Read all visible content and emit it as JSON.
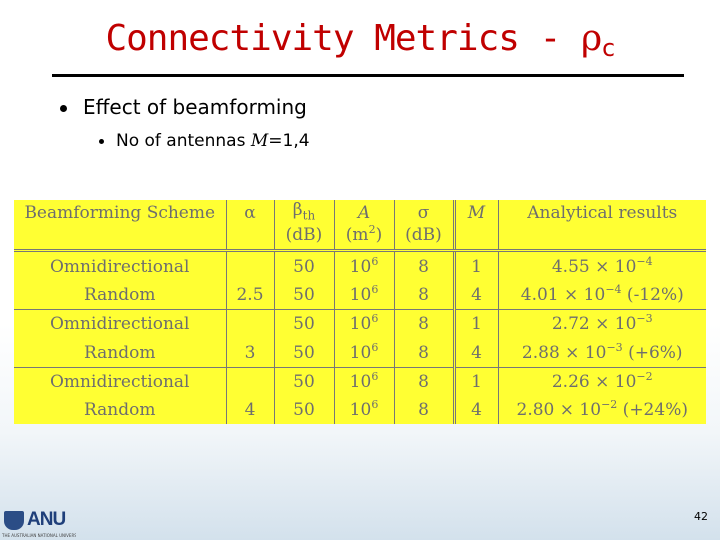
{
  "slide": {
    "title_text": "Connectivity Metrics - ",
    "title_symbol": "ρ",
    "title_sub": "c",
    "bullet1": "Effect of beamforming",
    "bullet2_prefix": "No of antennas ",
    "bullet2_var": "M",
    "bullet2_suffix": "=1,4",
    "page_number": "42"
  },
  "logo": {
    "text": "ANU",
    "subtext": "THE AUSTRALIAN NATIONAL UNIVERSITY"
  },
  "colors": {
    "title": "#c00000",
    "table_background": "#ffff33",
    "table_text": "#6e6e6e"
  },
  "table": {
    "headers": [
      {
        "line1": "Beamforming Scheme",
        "line2": ""
      },
      {
        "line1": "α",
        "line2": ""
      },
      {
        "line1": "β",
        "line1_sub": "th",
        "line2": "(dB)"
      },
      {
        "line1": "A",
        "line2": "(m",
        "line2_sup": "2",
        "line2_end": ")"
      },
      {
        "line1": "σ",
        "line2": "(dB)"
      },
      {
        "line1": "M",
        "line2": ""
      },
      {
        "line1": "Analytical results",
        "line2": ""
      }
    ],
    "rows": [
      {
        "scheme": "Omnidirectional",
        "alpha": "",
        "beta": "50",
        "A_base": "10",
        "A_exp": "6",
        "sigma": "8",
        "M": "1",
        "res_mant": "4.55 × 10",
        "res_exp": "−4",
        "res_note": ""
      },
      {
        "scheme": "Random",
        "alpha": "2.5",
        "beta": "50",
        "A_base": "10",
        "A_exp": "6",
        "sigma": "8",
        "M": "4",
        "res_mant": "4.01 × 10",
        "res_exp": "−4",
        "res_note": " (-12%)"
      },
      {
        "scheme": "Omnidirectional",
        "alpha": "",
        "beta": "50",
        "A_base": "10",
        "A_exp": "6",
        "sigma": "8",
        "M": "1",
        "res_mant": "2.72 × 10",
        "res_exp": "−3",
        "res_note": ""
      },
      {
        "scheme": "Random",
        "alpha": "3",
        "beta": "50",
        "A_base": "10",
        "A_exp": "6",
        "sigma": "8",
        "M": "4",
        "res_mant": "2.88 × 10",
        "res_exp": "−3",
        "res_note": " (+6%)"
      },
      {
        "scheme": "Omnidirectional",
        "alpha": "",
        "beta": "50",
        "A_base": "10",
        "A_exp": "6",
        "sigma": "8",
        "M": "1",
        "res_mant": "2.26 × 10",
        "res_exp": "−2",
        "res_note": ""
      },
      {
        "scheme": "Random",
        "alpha": "4",
        "beta": "50",
        "A_base": "10",
        "A_exp": "6",
        "sigma": "8",
        "M": "4",
        "res_mant": "2.80 × 10",
        "res_exp": "−2",
        "res_note": " (+24%)"
      }
    ]
  }
}
